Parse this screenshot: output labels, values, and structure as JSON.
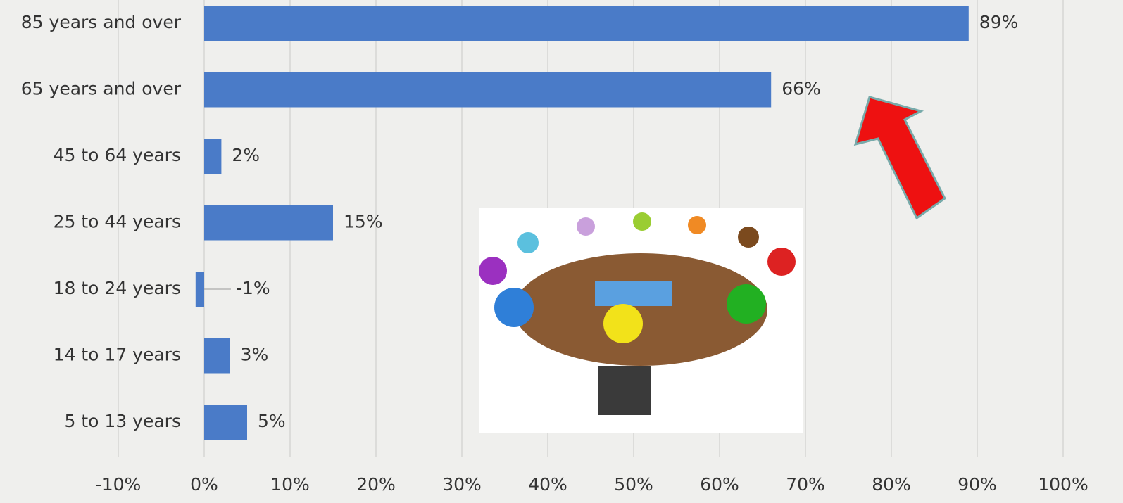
{
  "chart_data": {
    "type": "bar",
    "orientation": "horizontal",
    "categories": [
      "85 years and over",
      "65 years and over",
      "45 to 64 years",
      "25 to 44 years",
      "18 to 24 years",
      "14 to 17 years",
      "5 to 13 years"
    ],
    "values": [
      89,
      66,
      2,
      15,
      -1,
      3,
      5
    ],
    "value_labels": [
      "89%",
      "66%",
      "2%",
      "15%",
      "-1%",
      "3%",
      "5%"
    ],
    "color": "#4a7bc8",
    "xlim": [
      -10,
      100
    ],
    "xticks": [
      {
        "value": -10,
        "label": "-10%"
      },
      {
        "value": 0,
        "label": "0%"
      },
      {
        "value": 10,
        "label": "10%"
      },
      {
        "value": 20,
        "label": "20%"
      },
      {
        "value": 30,
        "label": "30%"
      },
      {
        "value": 40,
        "label": "40%"
      },
      {
        "value": 50,
        "label": "50%"
      },
      {
        "value": 60,
        "label": "60%"
      },
      {
        "value": 70,
        "label": "70%"
      },
      {
        "value": 80,
        "label": "80%"
      },
      {
        "value": 90,
        "label": "90%"
      },
      {
        "value": 100,
        "label": "100%"
      }
    ],
    "grid": true
  }
}
